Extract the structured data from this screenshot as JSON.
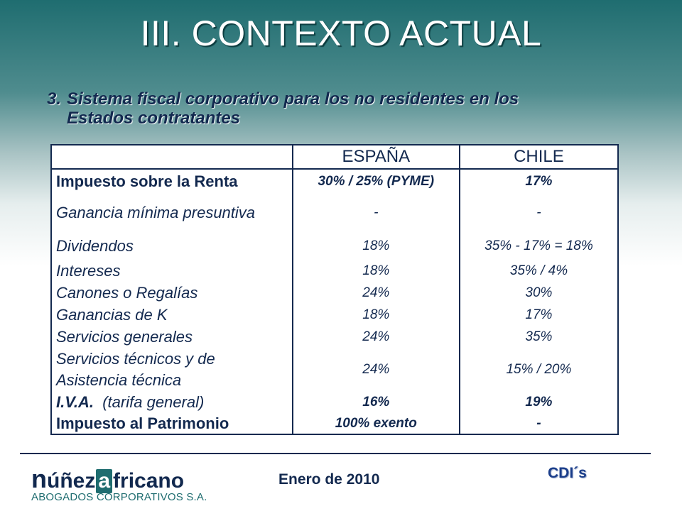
{
  "title": "III. CONTEXTO ACTUAL",
  "subtitle": {
    "number": "3.",
    "line1": "Sistema fiscal corporativo para los no residentes en los",
    "line2": "Estados contratantes"
  },
  "table": {
    "headers": [
      "",
      "ESPAÑA",
      "CHILE"
    ],
    "rows": [
      {
        "label": "Impuesto sobre la Renta",
        "espana": "30%  /  25% (PYME)",
        "chile": "17%"
      },
      {
        "label": "Ganancia mínima presuntiva",
        "espana": "-",
        "chile": "-"
      },
      {
        "label": "Dividendos",
        "espana": "18%",
        "chile": "35% - 17% = 18%"
      },
      {
        "label": "Intereses",
        "espana": "18%",
        "chile": "35% / 4%"
      },
      {
        "label": "Canones o Regalías",
        "espana": "24%",
        "chile": "30%"
      },
      {
        "label": "Ganancias de K",
        "espana": "18%",
        "chile": "17%"
      },
      {
        "label": "Servicios generales",
        "espana": "24%",
        "chile": "35%"
      },
      {
        "label": "Servicios técnicos y de",
        "label2": "Asistencia técnica",
        "espana": "24%",
        "chile": "15% / 20%"
      },
      {
        "label": "I.V.A.",
        "label_suffix": "(tarifa general)",
        "espana": "16%",
        "chile": "19%"
      },
      {
        "label": "Impuesto al Patrimonio",
        "espana": "100% exento",
        "chile": "-"
      }
    ]
  },
  "footer": {
    "logo_name_n": "n",
    "logo_name_1": "úñez",
    "logo_name_a": "a",
    "logo_name_2": "fricano",
    "logo_tagline": "ABOGADOS CORPORATIVOS S.A.",
    "date": "Enero de 2010",
    "right_label": "CDI´s"
  },
  "colors": {
    "title": "#ffffff",
    "subtitle": "#12294f",
    "table_text": "#13294f",
    "header_gradient_top": "#1f6d70",
    "cdis": "#1a3d8a"
  }
}
